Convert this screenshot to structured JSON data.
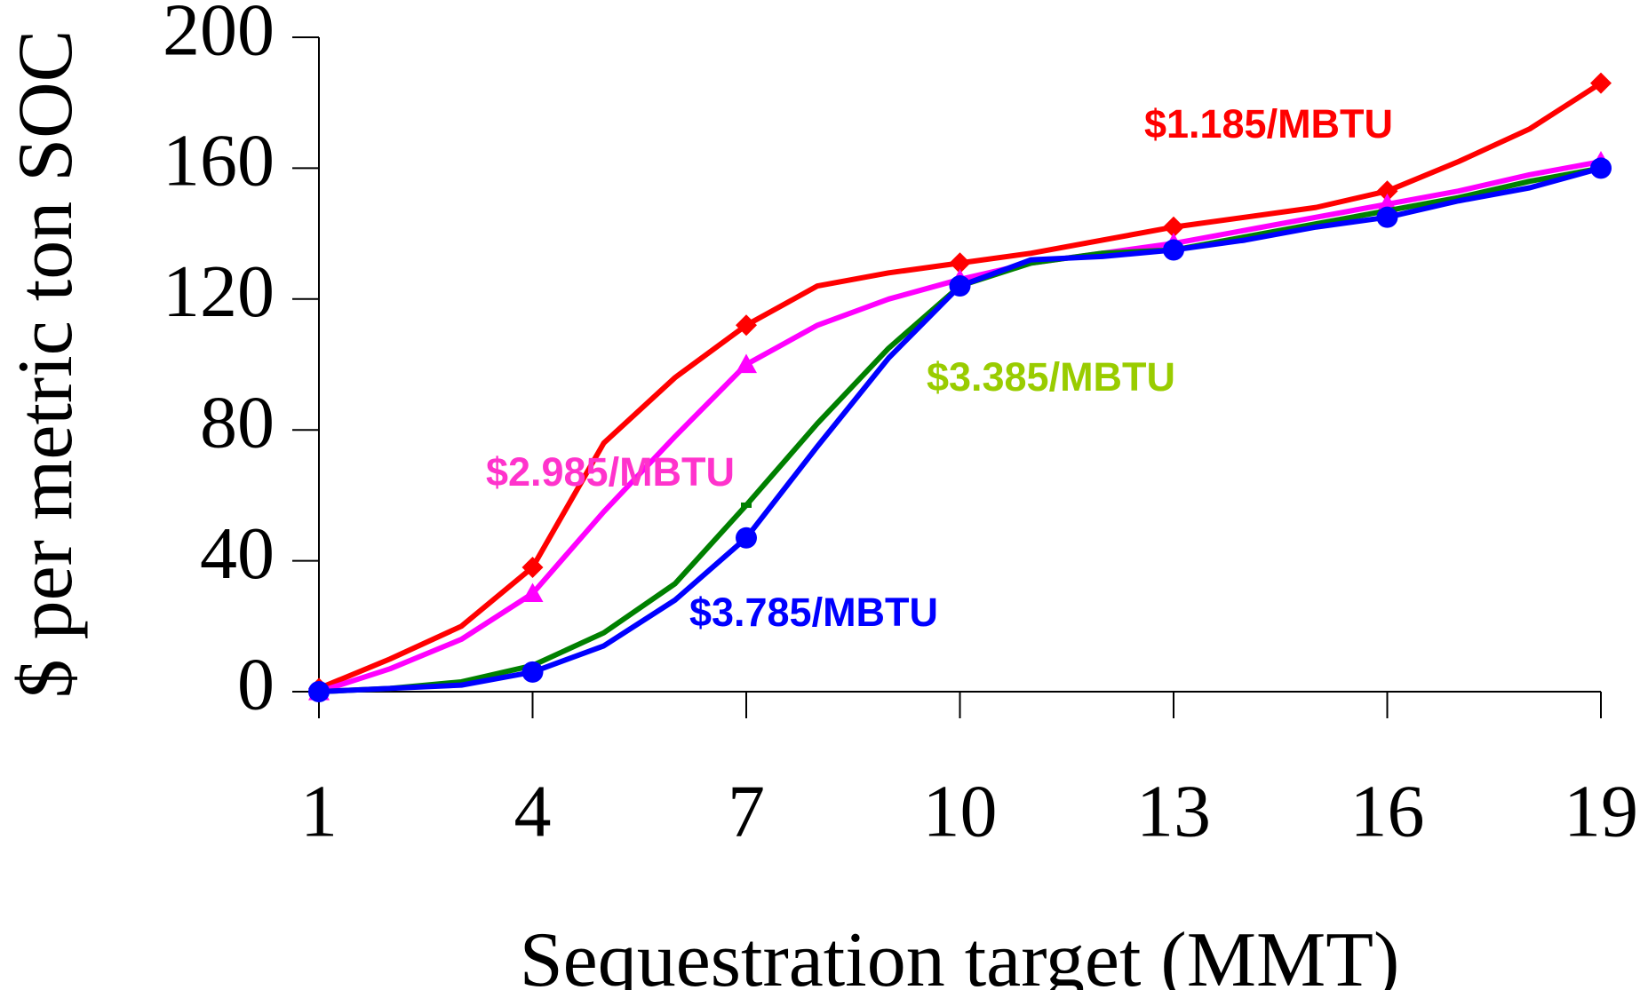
{
  "chart_data": {
    "type": "line",
    "xlabel": "Sequestration target (MMT)",
    "ylabel": "$ per metric ton SOC",
    "x": [
      1,
      2,
      3,
      4,
      5,
      6,
      7,
      8,
      9,
      10,
      11,
      12,
      13,
      14,
      15,
      16,
      17,
      18,
      19
    ],
    "xlim": [
      1,
      19
    ],
    "xticks": [
      1,
      4,
      7,
      10,
      13,
      16,
      19
    ],
    "ylim": [
      0,
      200
    ],
    "yticks": [
      0,
      40,
      80,
      120,
      160,
      200
    ],
    "series": [
      {
        "name": "$1.185/MBTU",
        "color": "#ff0000",
        "label_color": "#ff0000",
        "marker": "diamond",
        "values": [
          1,
          10,
          20,
          38,
          76,
          96,
          112,
          124,
          128,
          131,
          134,
          138,
          142,
          145,
          148,
          153,
          162,
          172,
          186
        ]
      },
      {
        "name": "$2.985/MBTU",
        "color": "#ff00ff",
        "label_color": "#ff33cc",
        "marker": "triangle",
        "values": [
          0,
          7,
          16,
          30,
          55,
          78,
          100,
          112,
          120,
          126,
          131,
          134,
          137,
          141,
          145,
          149,
          153,
          158,
          162
        ]
      },
      {
        "name": "$3.385/MBTU",
        "color": "#008000",
        "label_color": "#99cc00",
        "marker": "dash",
        "values": [
          0,
          1,
          3,
          8,
          18,
          33,
          57,
          82,
          105,
          124,
          131,
          134,
          135,
          139,
          143,
          147,
          151,
          156,
          160
        ]
      },
      {
        "name": "$3.785/MBTU",
        "color": "#0000ff",
        "label_color": "#0000ff",
        "marker": "circle",
        "values": [
          0,
          1,
          2,
          6,
          14,
          28,
          47,
          75,
          102,
          124,
          132,
          133,
          135,
          138,
          142,
          145,
          150,
          154,
          160
        ]
      }
    ]
  }
}
